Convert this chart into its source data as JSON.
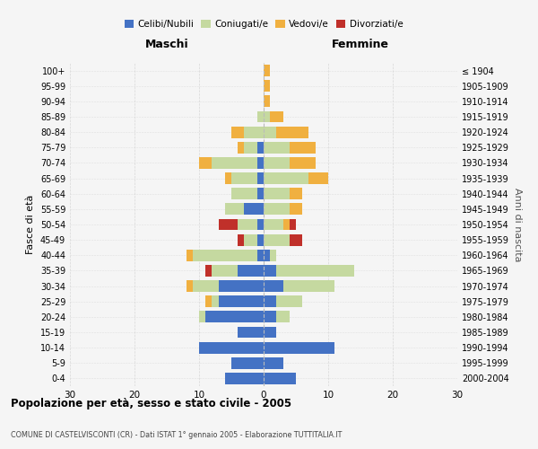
{
  "age_groups": [
    "100+",
    "95-99",
    "90-94",
    "85-89",
    "80-84",
    "75-79",
    "70-74",
    "65-69",
    "60-64",
    "55-59",
    "50-54",
    "45-49",
    "40-44",
    "35-39",
    "30-34",
    "25-29",
    "20-24",
    "15-19",
    "10-14",
    "5-9",
    "0-4"
  ],
  "birth_years": [
    "≤ 1904",
    "1905-1909",
    "1910-1914",
    "1915-1919",
    "1920-1924",
    "1925-1929",
    "1930-1934",
    "1935-1939",
    "1940-1944",
    "1945-1949",
    "1950-1954",
    "1955-1959",
    "1960-1964",
    "1965-1969",
    "1970-1974",
    "1975-1979",
    "1980-1984",
    "1985-1989",
    "1990-1994",
    "1995-1999",
    "2000-2004"
  ],
  "male": {
    "celibi": [
      0,
      0,
      0,
      0,
      0,
      1,
      1,
      1,
      1,
      3,
      1,
      1,
      1,
      4,
      7,
      7,
      9,
      4,
      10,
      5,
      6
    ],
    "coniugati": [
      0,
      0,
      0,
      1,
      3,
      2,
      7,
      4,
      4,
      3,
      3,
      2,
      10,
      4,
      4,
      1,
      1,
      0,
      0,
      0,
      0
    ],
    "vedovi": [
      0,
      0,
      0,
      0,
      2,
      1,
      2,
      1,
      0,
      0,
      0,
      0,
      1,
      0,
      1,
      1,
      0,
      0,
      0,
      0,
      0
    ],
    "divorziati": [
      0,
      0,
      0,
      0,
      0,
      0,
      0,
      0,
      0,
      0,
      3,
      1,
      0,
      1,
      0,
      0,
      0,
      0,
      0,
      0,
      0
    ]
  },
  "female": {
    "nubili": [
      0,
      0,
      0,
      0,
      0,
      0,
      0,
      0,
      0,
      0,
      0,
      0,
      1,
      2,
      3,
      2,
      2,
      2,
      11,
      3,
      5
    ],
    "coniugate": [
      0,
      0,
      0,
      1,
      2,
      4,
      4,
      7,
      4,
      4,
      3,
      4,
      1,
      12,
      8,
      4,
      2,
      0,
      0,
      0,
      0
    ],
    "vedove": [
      1,
      1,
      1,
      2,
      5,
      4,
      4,
      3,
      2,
      2,
      1,
      0,
      0,
      0,
      0,
      0,
      0,
      0,
      0,
      0,
      0
    ],
    "divorziate": [
      0,
      0,
      0,
      0,
      0,
      0,
      0,
      0,
      0,
      0,
      1,
      2,
      0,
      0,
      0,
      0,
      0,
      0,
      0,
      0,
      0
    ]
  },
  "colors": {
    "celibi_nubili": "#4472c4",
    "coniugati": "#c5d9a0",
    "vedovi": "#f0b040",
    "divorziati": "#c0302a"
  },
  "xlim": 30,
  "title": "Popolazione per età, sesso e stato civile - 2005",
  "subtitle": "COMUNE DI CASTELVISCONTI (CR) - Dati ISTAT 1° gennaio 2005 - Elaborazione TUTTITALIA.IT",
  "ylabel_left": "Fasce di età",
  "ylabel_right": "Anni di nascita",
  "xlabel_left": "Maschi",
  "xlabel_right": "Femmine",
  "legend_labels": [
    "Celibi/Nubili",
    "Coniugati/e",
    "Vedovi/e",
    "Divorziati/e"
  ],
  "bg_color": "#f5f5f5",
  "grid_color": "#cccccc"
}
